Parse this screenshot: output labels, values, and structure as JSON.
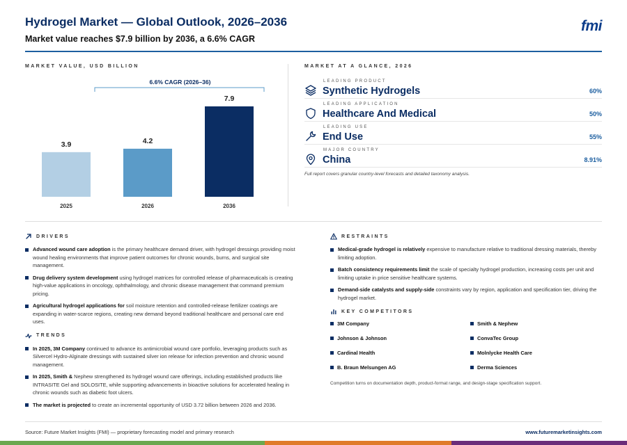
{
  "header": {
    "title": "Hydrogel Market — Global Outlook, 2026–2036",
    "subtitle": "Market value reaches $7.9 billion by 2036, a 6.6% CAGR",
    "logo": "fmi"
  },
  "chart_section_label": "MARKET VALUE, USD BILLION",
  "chart_data": {
    "type": "bar",
    "categories": [
      "2025",
      "2026",
      "2036"
    ],
    "values": [
      3.9,
      4.2,
      7.9
    ],
    "data_labels": [
      "3.9",
      "4.2",
      "7.9"
    ],
    "colors": [
      "#b3cfe4",
      "#5b9bc8",
      "#0b2d63"
    ],
    "annotation": "6.6% CAGR (2026–36)",
    "ylim": [
      0,
      7.9
    ],
    "grid": false
  },
  "glance": {
    "label": "MARKET AT A GLANCE, 2026",
    "items": [
      {
        "label": "LEADING PRODUCT",
        "value": "Synthetic Hydrogels",
        "pct": "60%",
        "icon": "layers-icon"
      },
      {
        "label": "LEADING APPLICATION",
        "value": "Healthcare And Medical",
        "pct": "50%",
        "icon": "shield-icon"
      },
      {
        "label": "LEADING USE",
        "value": "End Use",
        "pct": "55%",
        "icon": "wrench-icon"
      },
      {
        "label": "MAJOR COUNTRY",
        "value": "China",
        "pct": "8.91%",
        "icon": "location-pin-icon"
      }
    ],
    "note": "Full report covers granular country-level forecasts and detailed taxonomy analysis."
  },
  "drivers": {
    "label": "DRIVERS",
    "items": [
      {
        "bold": "Advanced wound care adoption",
        "text": " is the primary healthcare demand driver, with hydrogel dressings providing moist wound healing environments that improve patient outcomes for chronic wounds, burns, and surgical site management."
      },
      {
        "bold": "Drug delivery system development",
        "text": " using hydrogel matrices for controlled release of pharmaceuticals is creating high-value applications in oncology, ophthalmology, and chronic disease management that command premium pricing."
      },
      {
        "bold": "Agricultural hydrogel applications for",
        "text": " soil moisture retention and controlled-release fertilizer coatings are expanding in water-scarce regions, creating new demand beyond traditional healthcare and personal care end uses."
      }
    ]
  },
  "trends": {
    "label": "TRENDS",
    "items": [
      {
        "bold": "In 2025, 3M Company",
        "text": " continued to advance its antimicrobial wound care portfolio, leveraging products such as Silvercel Hydro-Alginate dressings with sustained silver ion release for infection prevention and chronic wound management."
      },
      {
        "bold": "In 2025, Smith &",
        "text": " Nephew strengthened its hydrogel wound care offerings, including established products like INTRASITE Gel and SOLOSITE, while supporting advancements in bioactive solutions for accelerated healing in chronic wounds such as diabetic foot ulcers."
      },
      {
        "bold": "The market is projected",
        "text": " to create an incremental opportunity of USD 3.72 billion between 2026 and 2036."
      }
    ]
  },
  "restraints": {
    "label": "RESTRAINTS",
    "items": [
      {
        "bold": "Medical-grade hydrogel is relatively",
        "text": " expensive to manufacture relative to traditional dressing materials, thereby limiting adoption."
      },
      {
        "bold": "Batch consistency requirements limit",
        "text": " the scale of specialty hydrogel production, increasing costs per unit and limiting uptake in price sensitive healthcare systems."
      },
      {
        "bold": "Demand-side catalysts and supply-side",
        "text": " constraints vary by region, application and specification tier, driving the hydrogel market."
      }
    ]
  },
  "competitors": {
    "label": "KEY COMPETITORS",
    "items": [
      "3M Company",
      "Smith & Nephew",
      "Johnson & Johnson",
      "ConvaTec Group",
      "Cardinal Health",
      "Molnlycke Health Care",
      "B. Braun Melsungen AG",
      "Derma Sciences"
    ],
    "note": "Competition turns on documentation depth, product-format range, and design-stage specification support."
  },
  "footer": {
    "source": "Source: Future Market Insights (FMI) — proprietary forecasting model and primary research",
    "url": "www.futuremarketinsights.com"
  },
  "colors": {
    "navy": "#0b2d63",
    "accent": "#1d5fa0",
    "bar_green": "#6aa84f",
    "bar_orange": "#e07b2a",
    "bar_purple": "#6b2d7a"
  }
}
